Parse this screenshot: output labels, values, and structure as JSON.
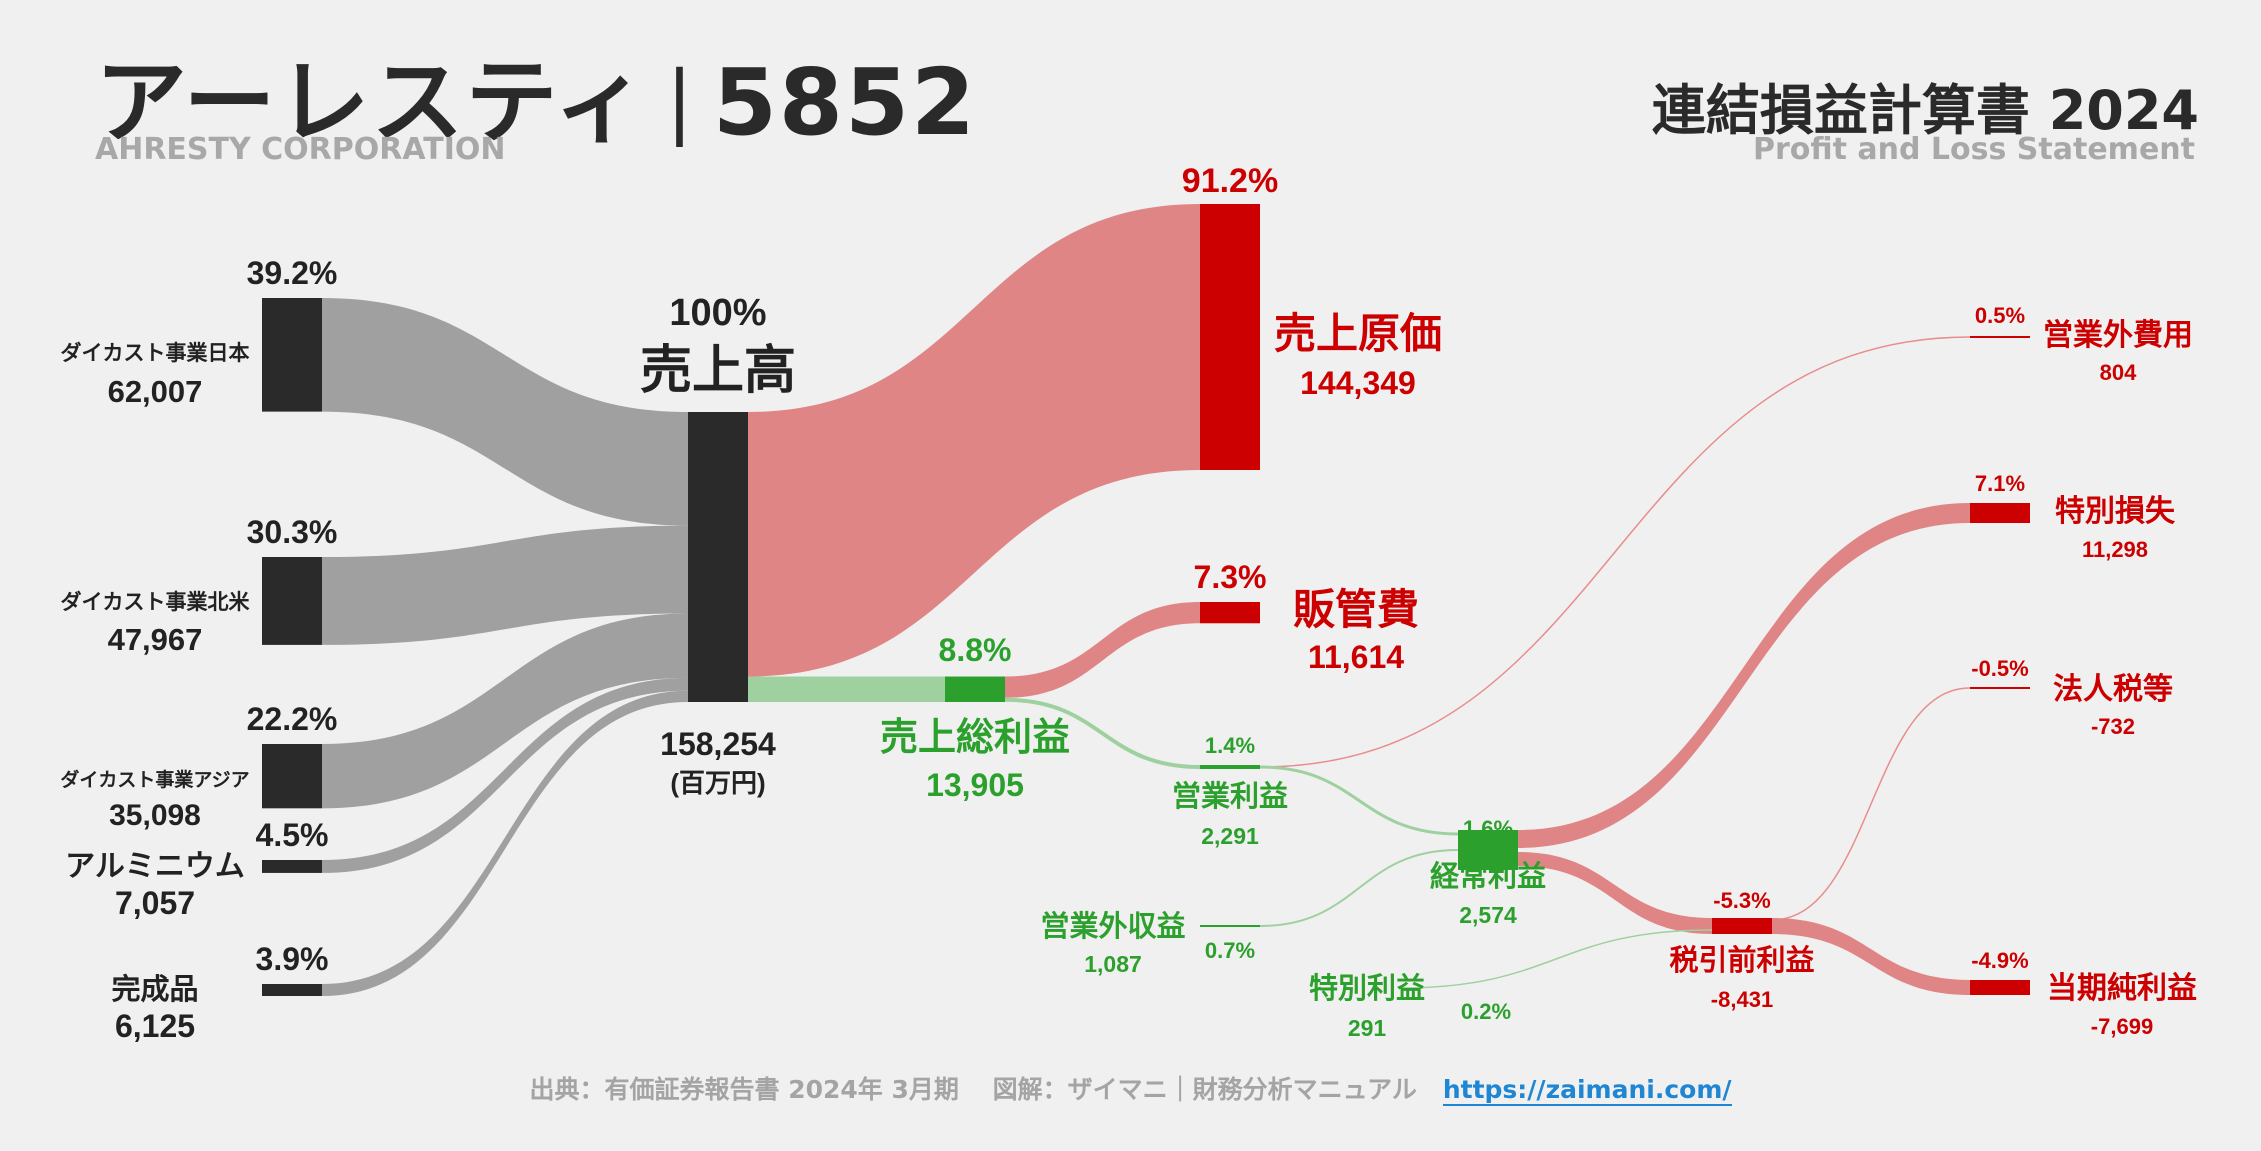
{
  "header": {
    "company": "アーレスティ",
    "code": "5852",
    "company_en": "AHRESTY CORPORATION",
    "statement": "連結損益計算書 2024",
    "statement_en": "Profit and Loss Statement"
  },
  "footer": {
    "source": "出典：有価証券報告書 2024年 3月期　 図解：ザイマニ｜財務分析マニュアル",
    "url": "https://zaimani.com/"
  },
  "colors": {
    "dark": "#2a2a2a",
    "gray_flow": "#a0a0a0",
    "red": "#cc0000",
    "red_flow": "#e08585",
    "green": "#2ca02c",
    "green_flow": "#9fd09f",
    "text_dark": "#222222"
  },
  "chart_data": {
    "type": "sankey",
    "unit": "(百万円)",
    "revenue": {
      "label": "売上高",
      "pct": "100%",
      "value": "158,254"
    },
    "segments": [
      {
        "label": "ダイカスト事業日本",
        "value": "62,007",
        "pct": "39.2%"
      },
      {
        "label": "ダイカスト事業北米",
        "value": "47,967",
        "pct": "30.3%"
      },
      {
        "label": "ダイカスト事業アジア",
        "value": "35,098",
        "pct": "22.2%"
      },
      {
        "label": "アルミニウム",
        "value": "7,057",
        "pct": "4.5%"
      },
      {
        "label": "完成品",
        "value": "6,125",
        "pct": "3.9%"
      }
    ],
    "cost_of_sales": {
      "label": "売上原価",
      "value": "144,349",
      "pct": "91.2%"
    },
    "gross_profit": {
      "label": "売上総利益",
      "value": "13,905",
      "pct": "8.8%"
    },
    "sga": {
      "label": "販管費",
      "value": "11,614",
      "pct": "7.3%"
    },
    "operating_income": {
      "label": "営業利益",
      "value": "2,291",
      "pct": "1.4%"
    },
    "non_operating_income": {
      "label": "営業外収益",
      "value": "1,087",
      "pct": "0.7%"
    },
    "non_operating_expense": {
      "label": "営業外費用",
      "value": "804",
      "pct": "0.5%"
    },
    "ordinary_income": {
      "label": "経常利益",
      "value": "2,574",
      "pct": "1.6%"
    },
    "extraordinary_income": {
      "label": "特別利益",
      "value": "291",
      "pct": "0.2%"
    },
    "extraordinary_loss": {
      "label": "特別損失",
      "value": "11,298",
      "pct": "7.1%"
    },
    "pretax_income": {
      "label": "税引前利益",
      "value": "-8,431",
      "pct": "-5.3%"
    },
    "income_tax": {
      "label": "法人税等",
      "value": "-732",
      "pct": "-0.5%"
    },
    "net_income": {
      "label": "当期純利益",
      "value": "-7,699",
      "pct": "-4.9%"
    }
  }
}
